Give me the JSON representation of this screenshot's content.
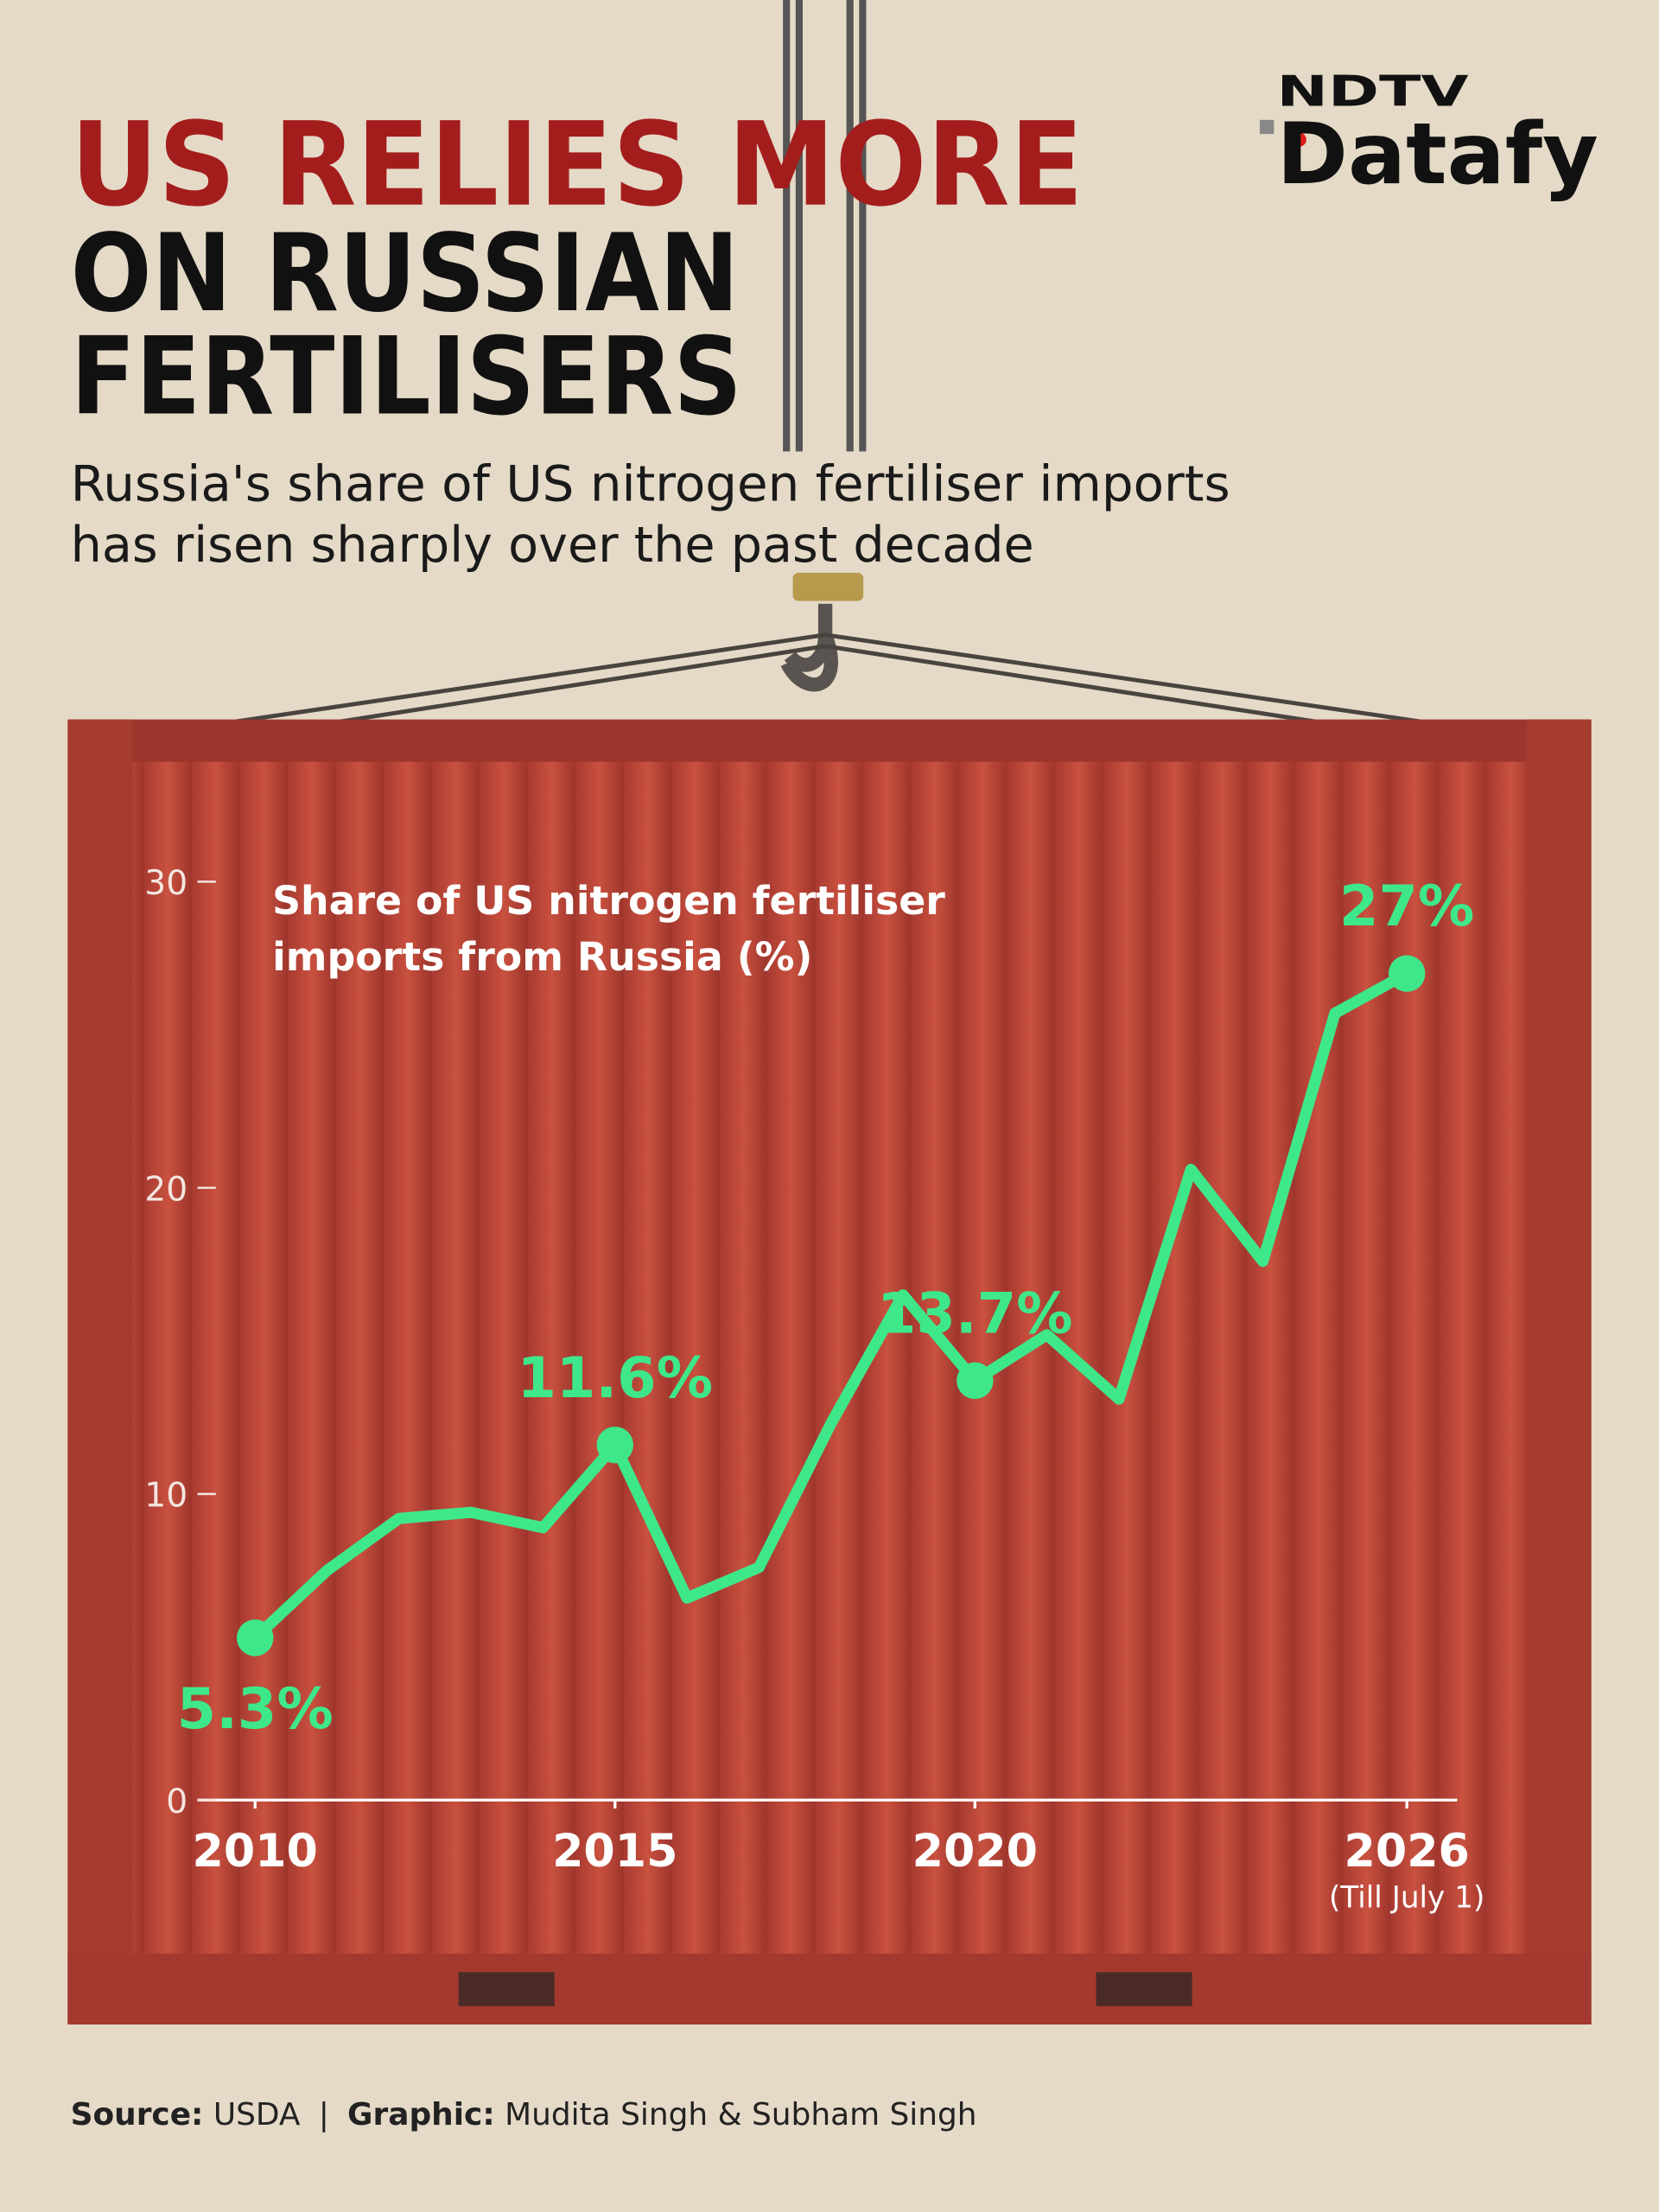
{
  "chart_data": {
    "type": "line",
    "title": [
      "US RELIES MORE",
      "ON RUSSIAN",
      "FERTILISERS"
    ],
    "subtitle": [
      "Russia's share of US nitrogen fertiliser imports",
      "has risen sharply over the past decade"
    ],
    "ylabel": [
      "Share of US nitrogen fertiliser",
      "imports from Russia (%)"
    ],
    "logo": [
      "NDTV",
      "Datafy"
    ],
    "x": [
      2010,
      2011,
      2012,
      2013,
      2014,
      2015,
      2016,
      2017,
      2018,
      2019,
      2020,
      2021,
      2022,
      2023,
      2024,
      2025,
      2026
    ],
    "series": [
      {
        "name": "Share of US nitrogen fertiliser imports from Russia (%)",
        "color": "#3ee88a",
        "values": [
          5.3,
          7.5,
          9.2,
          9.4,
          8.9,
          11.6,
          6.6,
          7.6,
          12.3,
          16.5,
          13.7,
          15.2,
          13.1,
          20.6,
          17.6,
          25.7,
          27
        ],
        "value_labels": [
          "5.3%",
          null,
          null,
          null,
          null,
          "11.6%",
          null,
          null,
          null,
          null,
          "13.7%",
          null,
          null,
          null,
          null,
          null,
          "27%"
        ]
      }
    ],
    "xlim": [
      2009.2,
      2026.7
    ],
    "xticks": [
      2010,
      2015,
      2020,
      2026
    ],
    "x_note": "(Till July 1)",
    "ylim": [
      0,
      30
    ],
    "yticks": [
      0,
      10,
      20,
      30
    ],
    "source": {
      "label": "Source:",
      "text": "USDA"
    },
    "graphic": {
      "label": "Graphic:",
      "text": "Mudita Singh & Subham Singh"
    }
  }
}
